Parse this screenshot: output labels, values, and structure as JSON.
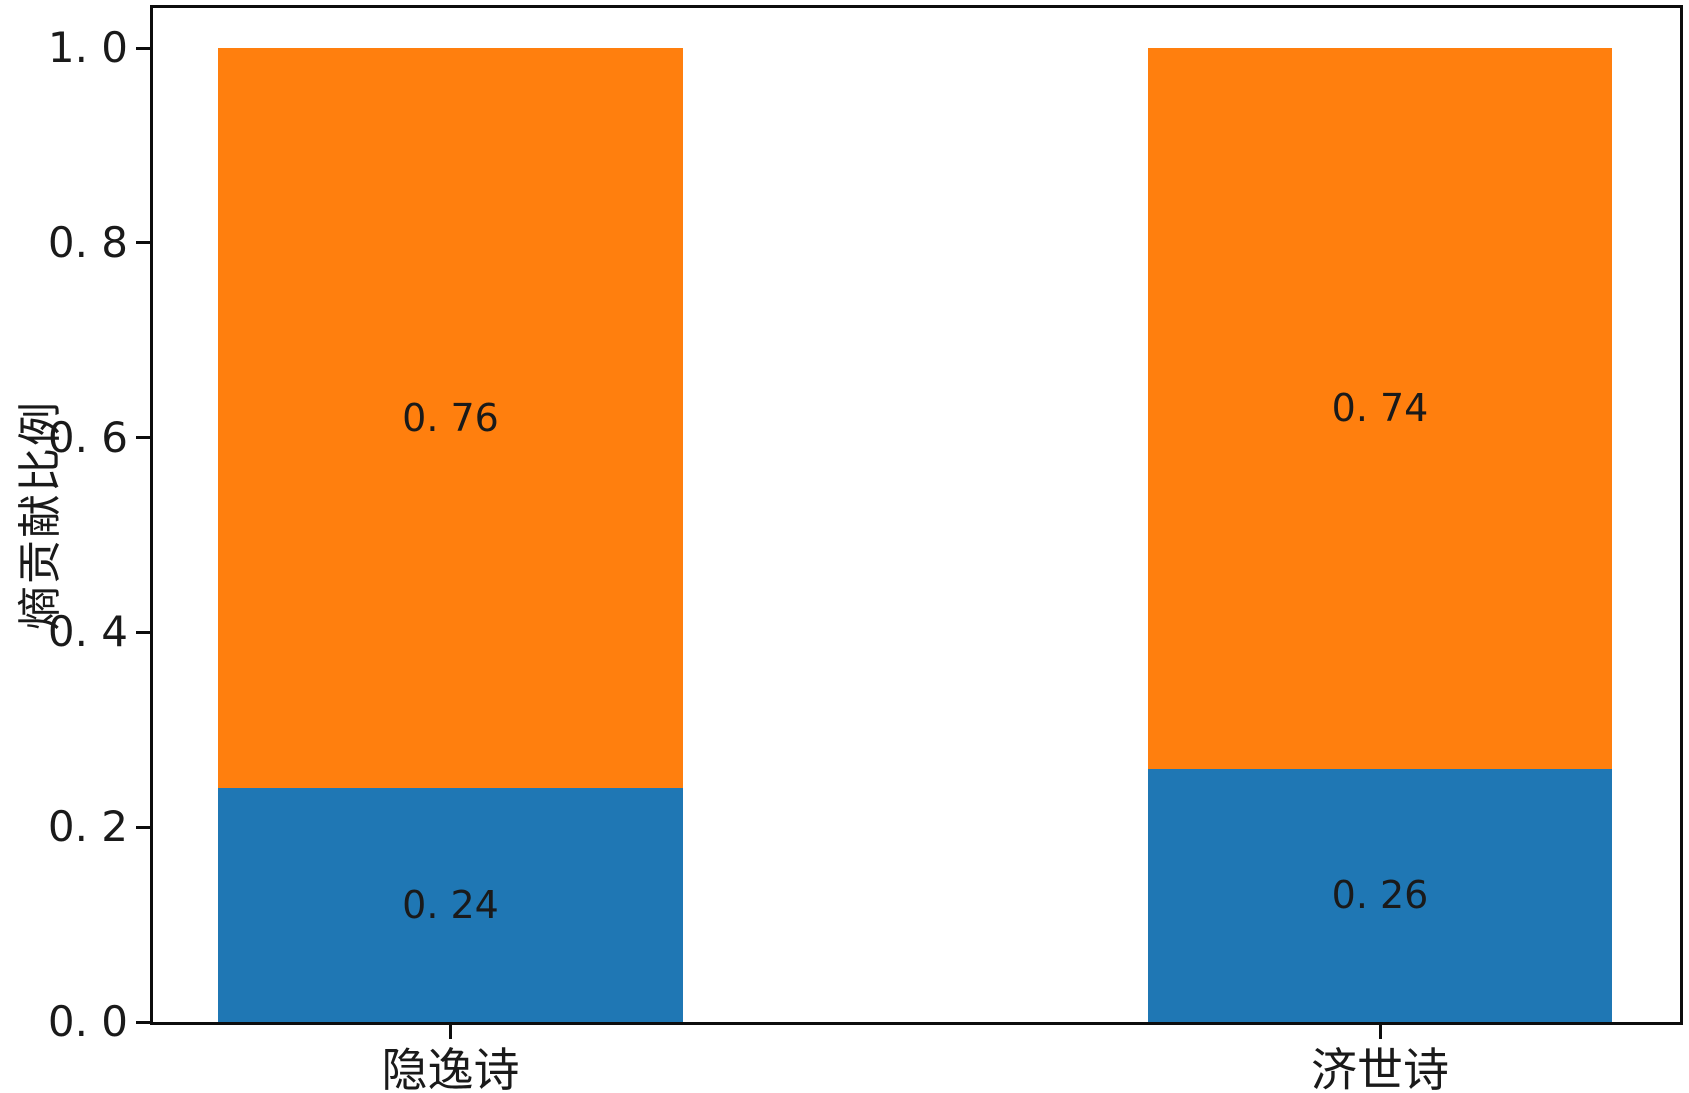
{
  "figure": {
    "background": "#ffffff",
    "spine_color": "#0d0d0d",
    "text_color": "#1a1a1a"
  },
  "chart_data": {
    "type": "bar",
    "stacked": true,
    "title": "",
    "xlabel": "",
    "ylabel": "熵贡献比例",
    "categories": [
      "隐逸诗",
      "济世诗"
    ],
    "series": [
      {
        "name": "bottom-segment",
        "color": "#1f77b4",
        "values": [
          0.24,
          0.26
        ],
        "labels": [
          "0. 24",
          "0. 26"
        ]
      },
      {
        "name": "top-segment",
        "color": "#ff7f0e",
        "values": [
          0.76,
          0.74
        ],
        "labels": [
          "0. 76",
          "0. 74"
        ]
      }
    ],
    "ylim": [
      0.0,
      1.0
    ],
    "yticks": {
      "values": [
        0.0,
        0.2,
        0.4,
        0.6,
        0.8,
        1.0
      ],
      "labels": [
        "0. 0",
        "0. 2",
        "0. 4",
        "0. 6",
        "0. 8",
        "1. 0"
      ]
    },
    "grid": false,
    "legend": null
  }
}
